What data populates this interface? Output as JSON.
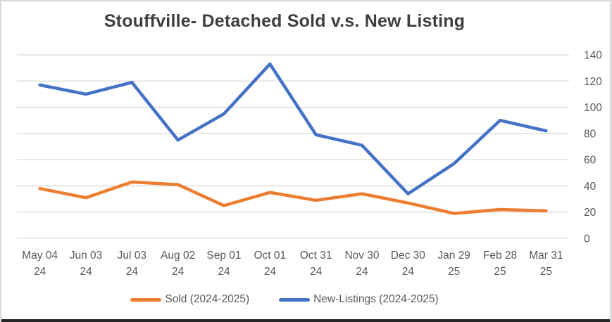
{
  "chart_data": {
    "type": "line",
    "title": "Stouffville- Detached Sold v.s. New Listing",
    "categories": [
      [
        "May 04",
        "24"
      ],
      [
        "Jun 03",
        "24"
      ],
      [
        "Jul 03",
        "24"
      ],
      [
        "Aug 02",
        "24"
      ],
      [
        "Sep 01",
        "24"
      ],
      [
        "Oct 01",
        "24"
      ],
      [
        "Oct 31",
        "24"
      ],
      [
        "Nov 30",
        "24"
      ],
      [
        "Dec 30",
        "24"
      ],
      [
        "Jan 29",
        "25"
      ],
      [
        "Feb 28",
        "25"
      ],
      [
        "Mar 31",
        "25"
      ]
    ],
    "series": [
      {
        "name": "Sold (2024-2025)",
        "color": "#ED7D31",
        "values": [
          38,
          31,
          43,
          41,
          25,
          35,
          29,
          34,
          27,
          19,
          22,
          21
        ]
      },
      {
        "name": "New-Listings (2024-2025)",
        "color": "#4472C4",
        "values": [
          117,
          110,
          119,
          75,
          95,
          133,
          79,
          71,
          34,
          57,
          90,
          82
        ]
      }
    ],
    "y_axis": {
      "min": 0,
      "max": 140,
      "step": 20,
      "ticks": [
        0,
        20,
        40,
        60,
        80,
        100,
        120,
        140
      ],
      "side": "right"
    },
    "x_axis": {
      "label_lines": 2
    },
    "grid": true,
    "legend_position": "bottom",
    "colors": {
      "gridline": "#D9D9D9",
      "axis_text": "#595959",
      "title_text": "#3f3f3f",
      "sold_line": "#ED7D31",
      "new_listings_line": "#4472C4"
    }
  }
}
